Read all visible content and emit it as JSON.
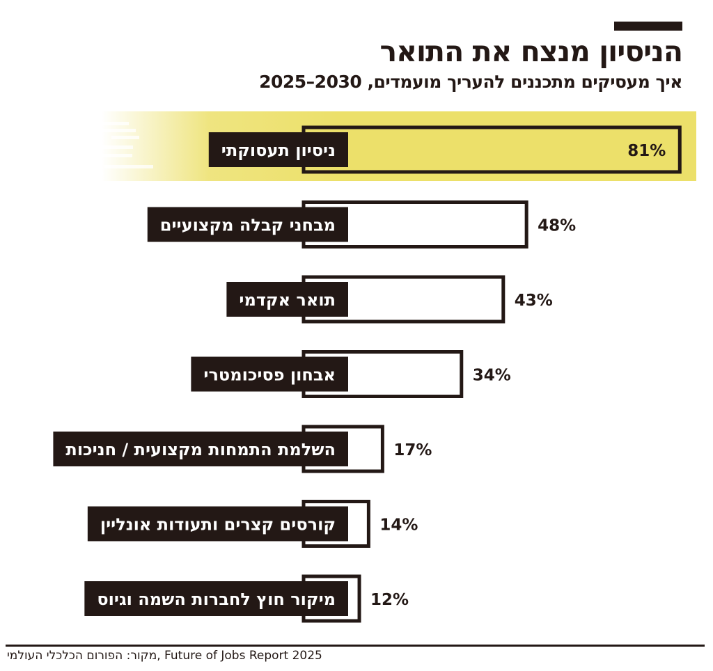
{
  "header": {
    "title": "הניסיון מנצח את התואר",
    "subtitle": "איך מעסיקים מתכננים להעריך מועמדים, 2030–2025"
  },
  "footer": {
    "source": "מקור: הפורום הכלכלי העולמי, Future of Jobs Report 2025"
  },
  "colors": {
    "ink": "#231815",
    "highlight": "#ece06a",
    "background": "#ffffff"
  },
  "chart_data": {
    "type": "bar",
    "orientation": "horizontal",
    "categories": [
      "ניסיון תעסוקתי",
      "מבחני קבלה מקצועיים",
      "תואר אקדמי",
      "אבחון פסיכומטרי",
      "השלמת התמחות מקצועית / חניכות",
      "קורסים קצרים ותעודות אונליין",
      "מיקור חוץ לחברות השמה וגיוס"
    ],
    "values": [
      81,
      48,
      43,
      34,
      17,
      14,
      12
    ],
    "value_labels": [
      "81%",
      "48%",
      "43%",
      "34%",
      "17%",
      "14%",
      "12%"
    ],
    "unit": "%",
    "highlighted_index": 0,
    "title": "",
    "xlabel": "",
    "ylabel": "",
    "xlim": [
      0,
      100
    ],
    "grid": false,
    "legend": "none"
  }
}
